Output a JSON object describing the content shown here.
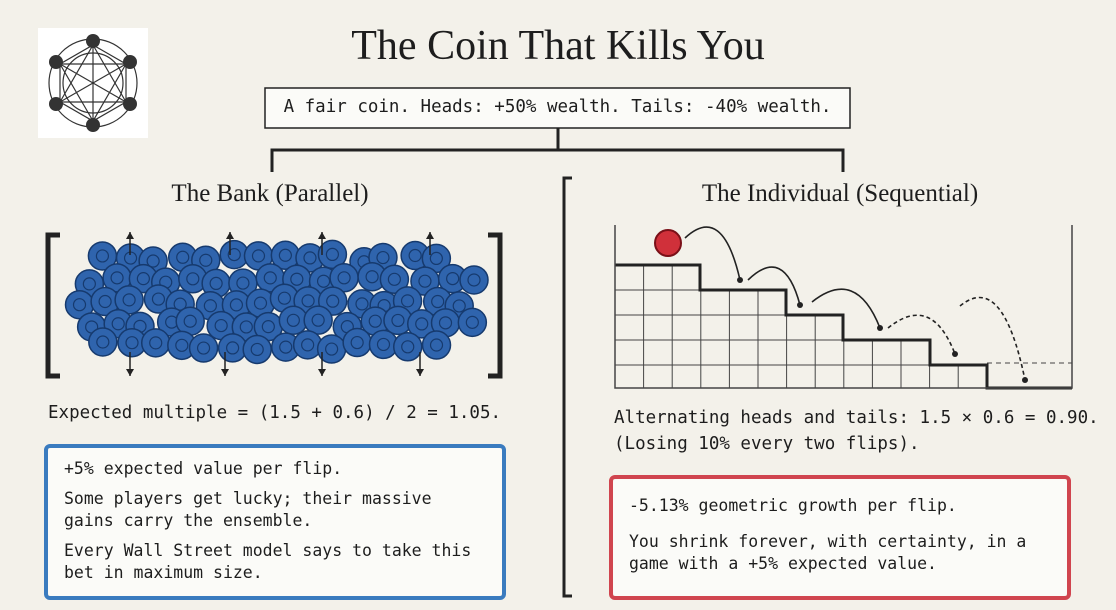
{
  "title": "The Coin That Kills You",
  "premise": "A fair coin. Heads: +50% wealth. Tails: -40% wealth.",
  "left": {
    "heading": "The Bank (Parallel)",
    "formula": "Expected multiple = (1.5 + 0.6) / 2 = 1.05.",
    "box": [
      "+5% expected value per flip.",
      "Some players get lucky; their massive gains carry the ensemble.",
      "Every Wall Street model says to take this bet in maximum size."
    ]
  },
  "right": {
    "heading": "The Individual (Sequential)",
    "formula": [
      "Alternating heads and tails: 1.5 × 0.6 = 0.90.",
      "(Losing 10% every two flips)."
    ],
    "box": [
      "-5.13% geometric growth per flip.",
      "You shrink forever, with certainty, in a game with a +5% expected value."
    ]
  }
}
